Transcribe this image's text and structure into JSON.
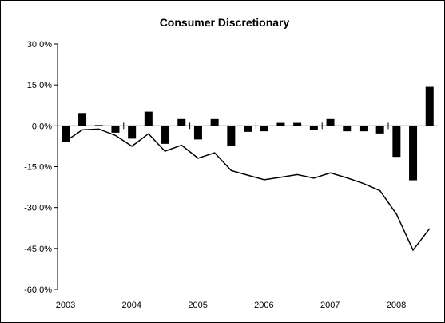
{
  "chart_data": {
    "type": "bar+line",
    "title": "Consumer Discretionary",
    "xlabel": "",
    "ylabel": "",
    "ylim": [
      -60,
      30
    ],
    "ytick_values": [
      30,
      15,
      0,
      -15,
      -30,
      -45,
      -60
    ],
    "ytick_labels": [
      "30.0%",
      "15.0%",
      "0.0%",
      "-15.0%",
      "-30.0%",
      "-45.0%",
      "-60.0%"
    ],
    "x_year_labels": [
      "2003",
      "2004",
      "2005",
      "2006",
      "2007",
      "2008"
    ],
    "grid": false,
    "legend": "none",
    "series": [
      {
        "type": "bar",
        "color": "#000000",
        "values": [
          -6.0,
          4.7,
          0.3,
          -2.5,
          -4.7,
          5.2,
          -6.6,
          2.5,
          -5.0,
          2.5,
          -7.5,
          -2.2,
          -2.0,
          1.1,
          1.1,
          -1.4,
          2.5,
          -2.0,
          -2.0,
          -2.8,
          -11.4,
          -20.0,
          14.3
        ]
      },
      {
        "type": "line",
        "color": "#000000",
        "values": [
          -5.6,
          -1.5,
          -1.2,
          -3.5,
          -7.5,
          -2.9,
          -9.3,
          -7.1,
          -11.9,
          -9.9,
          -16.4,
          -18.1,
          -19.8,
          -18.9,
          -17.9,
          -19.2,
          -17.3,
          -19.1,
          -21.2,
          -23.8,
          -32.4,
          -45.6,
          -37.7
        ]
      }
    ],
    "x_periods": 23
  }
}
